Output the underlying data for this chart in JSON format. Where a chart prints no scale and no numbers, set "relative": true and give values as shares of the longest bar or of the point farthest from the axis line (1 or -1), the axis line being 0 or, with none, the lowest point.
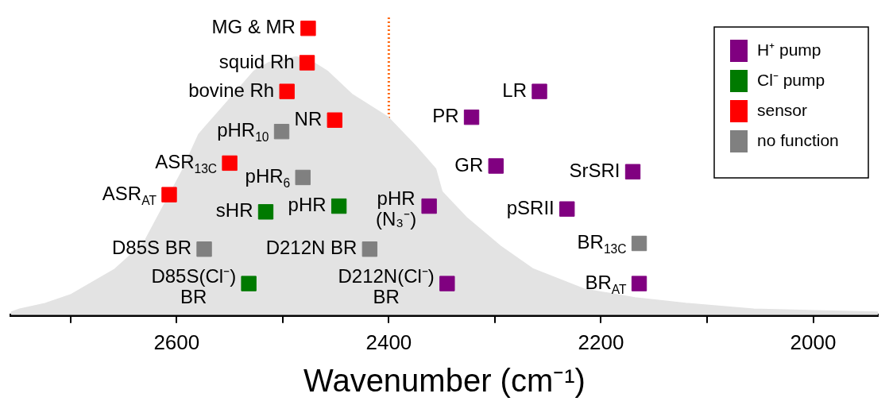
{
  "chart_data": {
    "type": "scatter",
    "xlabel": "Wavenumber (cm⁻¹)",
    "relative": true,
    "xlim": [
      2756,
      1939
    ],
    "xticks": [
      {
        "value": 2700,
        "label": null
      },
      2600,
      {
        "value": 2500,
        "label": null
      },
      2400,
      {
        "value": 2300,
        "label": null
      },
      2200,
      {
        "value": 2100,
        "label": null
      },
      2000
    ],
    "grid": false,
    "legend": "top right",
    "marker": "square",
    "ref_lines": [
      {
        "axis": "x",
        "value": 2400,
        "color": "#ff6a13",
        "line_style": "dotted"
      }
    ],
    "series": [
      {
        "type": "area",
        "color": "#e3e3e3",
        "marker": "none",
        "x": [
          2756,
          2748,
          2724,
          2700,
          2658,
          2631,
          2595,
          2579,
          2553,
          2527,
          2513,
          2487,
          2471,
          2458,
          2435,
          2401,
          2375,
          2356,
          2350,
          2327,
          2295,
          2264,
          2216,
          2168,
          2120,
          2056,
          1939
        ],
        "values": [
          0.01,
          0.02,
          0.04,
          0.07,
          0.16,
          0.25,
          0.5,
          0.63,
          0.74,
          0.85,
          0.88,
          0.9,
          0.88,
          0.85,
          0.77,
          0.69,
          0.59,
          0.51,
          0.43,
          0.34,
          0.24,
          0.16,
          0.09,
          0.06,
          0.04,
          0.02,
          0.01
        ]
      },
      {
        "name": "H⁺ pump",
        "color": "#800080",
        "x": [
          2362,
          2345,
          2322,
          2258,
          2299,
          2170,
          2232,
          2164
        ],
        "values": [
          0.38,
          0.11,
          0.69,
          0.78,
          0.52,
          0.5,
          0.37,
          0.11
        ]
      },
      {
        "name": "Cl⁻ pump",
        "color": "#007a00",
        "x": [
          2516,
          2447,
          2532
        ],
        "values": [
          0.36,
          0.38,
          0.11
        ]
      },
      {
        "name": "sensor",
        "color": "#ff0000",
        "x": [
          2476,
          2477,
          2496,
          2451,
          2550,
          2607
        ],
        "values": [
          1,
          0.88,
          0.78,
          0.68,
          0.53,
          0.42
        ]
      },
      {
        "name": "no function",
        "color": "#808080",
        "x": [
          2501,
          2481,
          2574,
          2418,
          2164
        ],
        "values": [
          0.64,
          0.48,
          0.23,
          0.23,
          0.25
        ]
      }
    ],
    "annotations": [
      {
        "text": "MG & MR",
        "x": 2476,
        "y": 1
      },
      {
        "text": "squid Rh",
        "x": 2477,
        "y": 0.88
      },
      {
        "text": "bovine Rh",
        "x": 2496,
        "y": 0.78
      },
      {
        "text": "NR",
        "x": 2451,
        "y": 0.68
      },
      {
        "text": "pHR$_{10}$",
        "x": 2501,
        "y": 0.64
      },
      {
        "text": "ASR$_{13C}$",
        "x": 2550,
        "y": 0.53
      },
      {
        "text": "pHR$_{6}$",
        "x": 2481,
        "y": 0.48
      },
      {
        "text": "ASR$_{AT}$",
        "x": 2607,
        "y": 0.42
      },
      {
        "text": "sHR",
        "x": 2516,
        "y": 0.36
      },
      {
        "text": "pHR",
        "x": 2447,
        "y": 0.38
      },
      {
        "text": "D85S BR",
        "x": 2574,
        "y": 0.23
      },
      {
        "text": "D212N BR",
        "x": 2418,
        "y": 0.23
      },
      {
        "text": "D85S(Cl⁻)\nBR",
        "x": 2532,
        "y": 0.11
      },
      {
        "text": "pHR\n(N₃⁻)",
        "x": 2362,
        "y": 0.38
      },
      {
        "text": "D212N(Cl⁻)\nBR",
        "x": 2345,
        "y": 0.11
      },
      {
        "text": "PR",
        "x": 2322,
        "y": 0.69
      },
      {
        "text": "LR",
        "x": 2258,
        "y": 0.78
      },
      {
        "text": "GR",
        "x": 2299,
        "y": 0.52
      },
      {
        "text": "SrSRI",
        "x": 2170,
        "y": 0.5
      },
      {
        "text": "pSRII",
        "x": 2232,
        "y": 0.37
      },
      {
        "text": "BR$_{13C}$",
        "x": 2164,
        "y": 0.25
      },
      {
        "text": "BR$_{AT}$",
        "x": 2164,
        "y": 0.11
      }
    ]
  }
}
